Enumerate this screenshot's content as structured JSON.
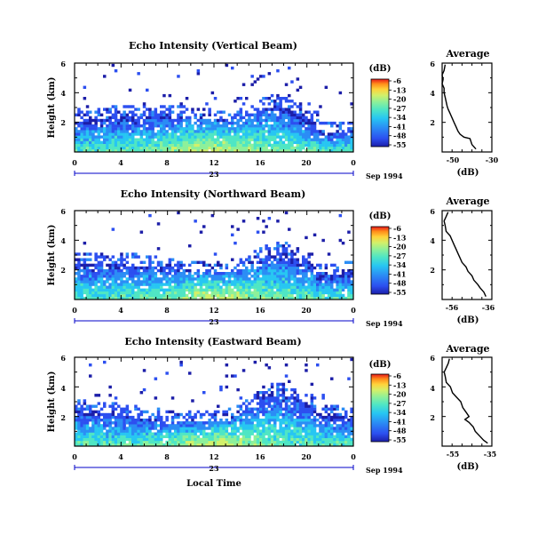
{
  "chart_data": [
    {
      "type": "heatmap",
      "title": "Echo Intensity (Vertical Beam)",
      "ylabel": "Height (km)",
      "xlim": [
        0,
        24
      ],
      "ylim": [
        0,
        6
      ],
      "xticks": [
        "0",
        "4",
        "8",
        "12",
        "16",
        "20",
        "0"
      ],
      "yticks": [
        "2",
        "4",
        "6"
      ],
      "date_day": "23",
      "date_month": "Sep 1994",
      "colorbar": {
        "unit": "(dB)",
        "ticks": [
          "-6",
          "-13",
          "-20",
          "-27",
          "-34",
          "-41",
          "-48",
          "-55"
        ]
      },
      "avg": {
        "title": "Average",
        "xlabel": "(dB)",
        "xticks": [
          "-50",
          "-30"
        ],
        "xlim": [
          -55,
          -30
        ],
        "yticks": [
          "2",
          "4",
          "6"
        ],
        "profile": [
          [
            -38,
            0.2
          ],
          [
            -40,
            0.5
          ],
          [
            -41,
            0.9
          ],
          [
            -44,
            1.0
          ],
          [
            -46,
            1.2
          ],
          [
            -47,
            1.4
          ],
          [
            -48,
            1.7
          ],
          [
            -49,
            2.0
          ],
          [
            -50,
            2.3
          ],
          [
            -51,
            2.6
          ],
          [
            -52,
            2.9
          ],
          [
            -52.5,
            3.1
          ],
          [
            -53,
            3.4
          ],
          [
            -53.5,
            3.7
          ],
          [
            -54,
            4.0
          ],
          [
            -54,
            4.3
          ],
          [
            -55,
            4.6
          ],
          [
            -54.5,
            4.9
          ],
          [
            -55,
            5.2
          ],
          [
            -54,
            5.5
          ],
          [
            -53.5,
            5.9
          ]
        ]
      }
    },
    {
      "type": "heatmap",
      "title": "Echo Intensity (Northward Beam)",
      "ylabel": "Height (km)",
      "xlim": [
        0,
        24
      ],
      "ylim": [
        0,
        6
      ],
      "xticks": [
        "0",
        "4",
        "8",
        "12",
        "16",
        "20",
        "0"
      ],
      "yticks": [
        "2",
        "4",
        "6"
      ],
      "date_day": "23",
      "date_month": "Sep 1994",
      "colorbar": {
        "unit": "(dB)",
        "ticks": [
          "-6",
          "-13",
          "-20",
          "-27",
          "-34",
          "-41",
          "-48",
          "-55"
        ]
      },
      "avg": {
        "title": "Average",
        "xlabel": "(dB)",
        "xticks": [
          "-56",
          "-36"
        ],
        "xlim": [
          -58,
          -33
        ],
        "yticks": [
          "2",
          "4",
          "6"
        ],
        "profile": [
          [
            -36,
            0.2
          ],
          [
            -37,
            0.5
          ],
          [
            -39,
            0.8
          ],
          [
            -40,
            1.0
          ],
          [
            -42,
            1.3
          ],
          [
            -43,
            1.6
          ],
          [
            -45,
            1.9
          ],
          [
            -46,
            2.2
          ],
          [
            -48,
            2.5
          ],
          [
            -49,
            2.8
          ],
          [
            -50,
            3.1
          ],
          [
            -51,
            3.4
          ],
          [
            -52,
            3.7
          ],
          [
            -53,
            4.0
          ],
          [
            -54,
            4.3
          ],
          [
            -56,
            4.6
          ],
          [
            -56.5,
            5.0
          ],
          [
            -57,
            5.3
          ],
          [
            -56,
            5.6
          ],
          [
            -55,
            5.9
          ]
        ]
      }
    },
    {
      "type": "heatmap",
      "title": "Echo Intensity (Eastward Beam)",
      "ylabel": "Height (km)",
      "xlim": [
        0,
        24
      ],
      "ylim": [
        0,
        6
      ],
      "xticks": [
        "0",
        "4",
        "8",
        "12",
        "16",
        "20",
        "0"
      ],
      "yticks": [
        "2",
        "4",
        "6"
      ],
      "date_day": "23",
      "date_month": "Sep 1994",
      "xlabel": "Local Time",
      "colorbar": {
        "unit": "(dB)",
        "ticks": [
          "-6",
          "-13",
          "-20",
          "-27",
          "-34",
          "-41",
          "-48",
          "-55"
        ]
      },
      "avg": {
        "title": "Average",
        "xlabel": "(dB)",
        "xticks": [
          "-55",
          "-35"
        ],
        "xlim": [
          -57,
          -33
        ],
        "yticks": [
          "2",
          "4",
          "6"
        ],
        "profile": [
          [
            -35,
            0.2
          ],
          [
            -37,
            0.4
          ],
          [
            -39,
            0.7
          ],
          [
            -41,
            1.0
          ],
          [
            -42,
            1.3
          ],
          [
            -44,
            1.6
          ],
          [
            -46,
            1.8
          ],
          [
            -44,
            2.0
          ],
          [
            -45,
            2.2
          ],
          [
            -47,
            2.6
          ],
          [
            -48,
            3.0
          ],
          [
            -50,
            3.3
          ],
          [
            -52,
            3.6
          ],
          [
            -53,
            4.0
          ],
          [
            -55,
            4.3
          ],
          [
            -55.5,
            4.7
          ],
          [
            -56,
            5.0
          ],
          [
            -55,
            5.3
          ],
          [
            -54,
            5.6
          ],
          [
            -53.5,
            5.9
          ]
        ]
      }
    }
  ],
  "colors": {
    "scale": [
      "#1c1ea8",
      "#2c4ff0",
      "#2b8df5",
      "#27c6f2",
      "#4fe6c4",
      "#8df09a",
      "#d2f06a",
      "#ffd23a",
      "#ff8c1a",
      "#e8181a"
    ],
    "axis": "#000000",
    "guide_line": "#0000c8"
  }
}
